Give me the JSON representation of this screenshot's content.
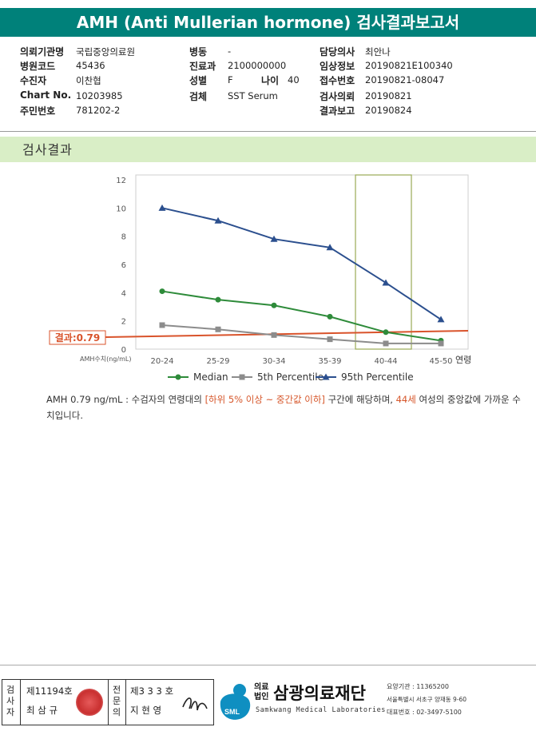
{
  "title": "AMH (Anti Mullerian hormone) 검사결과보고서",
  "info": {
    "col1": [
      {
        "label": "의뢰기관명",
        "value": "국립중앙의료원"
      },
      {
        "label": "병원코드",
        "value": "45436"
      },
      {
        "label": "수진자",
        "value": "이찬협"
      },
      {
        "label": "Chart No.",
        "value": "10203985"
      },
      {
        "label": "주민번호",
        "value": "781202-2"
      }
    ],
    "col2": [
      {
        "label": "병동",
        "value": "-"
      },
      {
        "label": "진료과",
        "value": "2100000000"
      },
      {
        "label": "성별",
        "value": "F"
      },
      {
        "label": "검체",
        "value": "SST Serum"
      }
    ],
    "age_label": "나이",
    "age_value": "40",
    "col3": [
      {
        "label": "담당의사",
        "value": "최안나"
      },
      {
        "label": "임상정보",
        "value": "20190821E100340"
      },
      {
        "label": "접수번호",
        "value": "20190821-08047"
      },
      {
        "label": "검사의뢰",
        "value": "20190821"
      },
      {
        "label": "결과보고",
        "value": "20190824"
      }
    ]
  },
  "section_title": "검사결과",
  "chart_data": {
    "type": "line",
    "categories": [
      "20-24",
      "25-29",
      "30-34",
      "35-39",
      "40-44",
      "45-50"
    ],
    "x_axis_suffix": "연령",
    "ylabel": "AMH수치(ng/mL)",
    "ylim": [
      0,
      12
    ],
    "yticks": [
      0,
      2,
      4,
      6,
      8,
      10,
      12
    ],
    "series": [
      {
        "name": "Median",
        "values": [
          4.1,
          3.5,
          3.1,
          2.3,
          1.2,
          0.6
        ],
        "color": "#2e8b3a",
        "marker": "circle"
      },
      {
        "name": "5th Percentile",
        "values": [
          1.7,
          1.4,
          1.0,
          0.7,
          0.4,
          0.4
        ],
        "color": "#8c8c8c",
        "marker": "square"
      },
      {
        "name": "95th Percentile",
        "values": [
          10.0,
          9.1,
          7.8,
          7.2,
          4.7,
          2.1
        ],
        "color": "#2b4f8e",
        "marker": "triangle"
      }
    ],
    "result_label": "결과:0.79",
    "result_color": "#d9532b",
    "highlight_category": "40-44"
  },
  "note": {
    "prefix": "AMH  0.79 ng/mL : 수검자의 연령대의 ",
    "range": "[하위 5% 이상 ~ 중간값 이하]",
    "middle": " 구간에 해당하며, ",
    "age": "44세",
    "suffix": " 여성의 중앙값에 가까운 수치입니다."
  },
  "footer": {
    "inspector_label": "검사자",
    "inspector_no": "제11194호",
    "inspector_name": "최 삼 규",
    "specialist_label": "전문의",
    "specialist_no": "제3 3 3 호",
    "specialist_name": "지 현 영",
    "org_type": "의료법인",
    "org_name": "삼광의료재단",
    "org_eng": "Samkwang Medical Laboratories",
    "logo_text": "SML",
    "code": "요양기관 : 11365200",
    "address": "서울특별시 서초구 양재동 9-60",
    "phone": "대표번호 : 02-3497-5100"
  }
}
